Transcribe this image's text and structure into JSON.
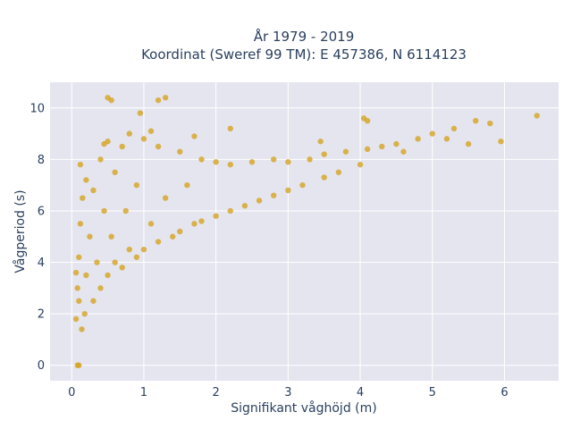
{
  "chart_data": {
    "type": "scatter",
    "title_line1": "År 1979 - 2019",
    "title_line2": "Koordinat (Sweref 99 TM): E 457386, N 6114123",
    "xlabel": "Signifikant våghöjd (m)",
    "ylabel": "Vågperiod (s)",
    "xlim": [
      -0.3,
      6.75
    ],
    "ylim": [
      -0.6,
      11.0
    ],
    "x_ticks": [
      0,
      1,
      2,
      3,
      4,
      5,
      6
    ],
    "y_ticks": [
      0,
      2,
      4,
      6,
      8,
      10
    ],
    "grid": true,
    "marker_color": "#d4a421",
    "plot_bgcolor": "#e5e5f0",
    "series": [
      {
        "points": [
          [
            0.06,
            1.8
          ],
          [
            0.06,
            3.6
          ],
          [
            0.08,
            3.0
          ],
          [
            0.1,
            2.5
          ],
          [
            0.1,
            4.2
          ],
          [
            0.12,
            5.5
          ],
          [
            0.12,
            7.8
          ],
          [
            0.14,
            1.4
          ],
          [
            0.15,
            6.5
          ],
          [
            0.18,
            2.0
          ],
          [
            0.2,
            3.5
          ],
          [
            0.2,
            7.2
          ],
          [
            0.25,
            5.0
          ],
          [
            0.3,
            2.5
          ],
          [
            0.3,
            6.8
          ],
          [
            0.35,
            4.0
          ],
          [
            0.4,
            3.0
          ],
          [
            0.4,
            8.0
          ],
          [
            0.45,
            6.0
          ],
          [
            0.5,
            3.5
          ],
          [
            0.5,
            8.7
          ],
          [
            0.55,
            5.0
          ],
          [
            0.6,
            4.0
          ],
          [
            0.6,
            7.5
          ],
          [
            0.7,
            3.8
          ],
          [
            0.7,
            8.5
          ],
          [
            0.75,
            6.0
          ],
          [
            0.8,
            4.5
          ],
          [
            0.8,
            9.0
          ],
          [
            0.9,
            4.2
          ],
          [
            0.9,
            7.0
          ],
          [
            1.0,
            4.5
          ],
          [
            1.0,
            8.8
          ],
          [
            1.1,
            5.5
          ],
          [
            1.2,
            4.8
          ],
          [
            1.2,
            8.5
          ],
          [
            1.3,
            6.5
          ],
          [
            1.4,
            5.0
          ],
          [
            1.5,
            5.2
          ],
          [
            1.5,
            8.3
          ],
          [
            1.6,
            7.0
          ],
          [
            1.7,
            5.5
          ],
          [
            1.8,
            5.6
          ],
          [
            1.8,
            8.0
          ],
          [
            2.0,
            5.8
          ],
          [
            2.0,
            7.9
          ],
          [
            2.2,
            6.0
          ],
          [
            2.2,
            7.8
          ],
          [
            2.4,
            6.2
          ],
          [
            2.5,
            7.9
          ],
          [
            2.6,
            6.4
          ],
          [
            2.8,
            6.6
          ],
          [
            2.8,
            8.0
          ],
          [
            3.0,
            6.8
          ],
          [
            3.0,
            7.9
          ],
          [
            3.2,
            7.0
          ],
          [
            3.3,
            8.0
          ],
          [
            3.5,
            7.3
          ],
          [
            3.5,
            8.2
          ],
          [
            3.7,
            7.5
          ],
          [
            3.8,
            8.3
          ],
          [
            4.0,
            7.8
          ],
          [
            4.1,
            8.4
          ],
          [
            4.3,
            8.5
          ],
          [
            4.5,
            8.6
          ],
          [
            4.6,
            8.3
          ],
          [
            4.8,
            8.8
          ],
          [
            5.0,
            9.0
          ],
          [
            5.2,
            8.8
          ],
          [
            5.3,
            9.2
          ],
          [
            5.5,
            8.6
          ],
          [
            5.6,
            9.5
          ],
          [
            5.8,
            9.4
          ],
          [
            5.95,
            8.7
          ],
          [
            6.45,
            9.7
          ],
          [
            0.5,
            10.4
          ],
          [
            0.55,
            10.3
          ],
          [
            1.2,
            10.3
          ],
          [
            1.3,
            10.4
          ],
          [
            0.95,
            9.8
          ],
          [
            1.1,
            9.1
          ],
          [
            2.2,
            9.2
          ],
          [
            0.08,
            0.0
          ],
          [
            0.1,
            0.0
          ],
          [
            4.05,
            9.6
          ],
          [
            4.1,
            9.5
          ],
          [
            3.45,
            8.7
          ],
          [
            0.45,
            8.6
          ],
          [
            1.7,
            8.9
          ]
        ]
      }
    ]
  }
}
